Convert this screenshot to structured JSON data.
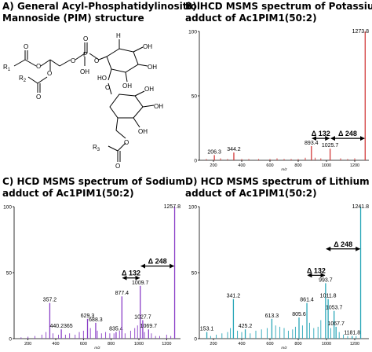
{
  "panels": {
    "a": {
      "title_line1": "A) General Acyl-Phosphatidylinositiol",
      "title_line2": "Mannoside (PIM) structure"
    },
    "b": {
      "title_line1": "B) HCD MSMS spectrum of Potassium",
      "title_line2": "adduct of Ac1PIM1(50:2)"
    },
    "c": {
      "title_line1": "C) HCD MSMS spectrum of Sodium",
      "title_line2": "adduct of Ac1PIM1(50:2)"
    },
    "d": {
      "title_line1": "D) HCD MSMS spectrum of Lithium",
      "title_line2": "adduct of Ac1PIM1(50:2)"
    }
  },
  "structure": {
    "r1": "R",
    "r1_sub": "1",
    "r2": "R",
    "r2_sub": "2",
    "r3": "R",
    "r3_sub": "3",
    "p": "P",
    "oh": "OH",
    "ho": "HO",
    "h": "H",
    "o": "O"
  },
  "chart_data": [
    {
      "type": "bar",
      "panel": "B",
      "color": "#d23a3a",
      "xlabel": "m/z",
      "ylabel": "",
      "xlim": [
        100,
        1300
      ],
      "ylim": [
        0,
        100
      ],
      "xticks": [
        200,
        400,
        600,
        800,
        1000,
        1200
      ],
      "yticks": [
        0,
        50,
        100
      ],
      "peaks": [
        {
          "x": 206.3,
          "y": 4,
          "label": "206.3"
        },
        {
          "x": 344.2,
          "y": 6,
          "label": "344.2"
        },
        {
          "x": 893.4,
          "y": 11,
          "label": "893.4"
        },
        {
          "x": 1025.7,
          "y": 9,
          "label": "1025.7"
        },
        {
          "x": 1273.8,
          "y": 100,
          "label": "1273.8"
        }
      ],
      "noise": [
        [
          150,
          1
        ],
        [
          250,
          1.5
        ],
        [
          300,
          1
        ],
        [
          400,
          1
        ],
        [
          450,
          1
        ],
        [
          520,
          1
        ],
        [
          600,
          1
        ],
        [
          650,
          1.5
        ],
        [
          700,
          1
        ],
        [
          750,
          1
        ],
        [
          800,
          1
        ],
        [
          850,
          2
        ],
        [
          920,
          2
        ],
        [
          960,
          1.5
        ],
        [
          1100,
          1.5
        ],
        [
          1150,
          1
        ],
        [
          1200,
          1.5
        ]
      ],
      "annotations": [
        {
          "label": "Δ 132",
          "from": 893.4,
          "to": 1025.7,
          "y": 17
        },
        {
          "label": "Δ 248",
          "from": 1025.7,
          "to": 1273.8,
          "y": 17
        }
      ]
    },
    {
      "type": "bar",
      "panel": "C",
      "color": "#8a3fc7",
      "xlabel": "m/z",
      "ylabel": "",
      "xlim": [
        100,
        1300
      ],
      "ylim": [
        0,
        100
      ],
      "xticks": [
        200,
        400,
        600,
        800,
        1000,
        1200
      ],
      "yticks": [
        0,
        50,
        100
      ],
      "peaks": [
        {
          "x": 357.2,
          "y": 27,
          "label": "357.2"
        },
        {
          "x": 440.2365,
          "y": 7,
          "label": "440.2365"
        },
        {
          "x": 629.3,
          "y": 15,
          "label": "629.3"
        },
        {
          "x": 688.3,
          "y": 12,
          "label": "688.3"
        },
        {
          "x": 835.4,
          "y": 5,
          "label": "835.4"
        },
        {
          "x": 877.4,
          "y": 32,
          "label": "877.4"
        },
        {
          "x": 1009.7,
          "y": 40,
          "label": "1009.7"
        },
        {
          "x": 1027.7,
          "y": 14,
          "label": "1027.7"
        },
        {
          "x": 1069.7,
          "y": 7,
          "label": "1069.7"
        },
        {
          "x": 1257.8,
          "y": 100,
          "label": "1257.8"
        }
      ],
      "noise": [
        [
          150,
          1
        ],
        [
          200,
          1.5
        ],
        [
          250,
          2
        ],
        [
          300,
          3
        ],
        [
          330,
          5
        ],
        [
          380,
          4
        ],
        [
          420,
          3
        ],
        [
          470,
          3
        ],
        [
          500,
          4
        ],
        [
          540,
          3
        ],
        [
          570,
          5
        ],
        [
          600,
          6
        ],
        [
          650,
          8
        ],
        [
          700,
          6
        ],
        [
          730,
          4
        ],
        [
          760,
          5
        ],
        [
          790,
          4
        ],
        [
          820,
          4
        ],
        [
          860,
          6
        ],
        [
          900,
          4
        ],
        [
          940,
          6
        ],
        [
          970,
          8
        ],
        [
          990,
          10
        ],
        [
          1040,
          5
        ],
        [
          1090,
          4
        ],
        [
          1120,
          2
        ],
        [
          1150,
          2
        ],
        [
          1200,
          3
        ],
        [
          1230,
          2
        ]
      ],
      "annotations": [
        {
          "label": "Δ 132",
          "from": 877.4,
          "to": 1009.7,
          "y": 46
        },
        {
          "label": "Δ 248",
          "from": 1009.7,
          "to": 1257.8,
          "y": 55
        }
      ]
    },
    {
      "type": "bar",
      "panel": "D",
      "color": "#2aa7b8",
      "xlabel": "m/z",
      "ylabel": "",
      "xlim": [
        100,
        1300
      ],
      "ylim": [
        0,
        100
      ],
      "xticks": [
        200,
        400,
        600,
        800,
        1000,
        1200
      ],
      "yticks": [
        0,
        50,
        100
      ],
      "peaks": [
        {
          "x": 153.1,
          "y": 5,
          "label": "153.1"
        },
        {
          "x": 341.2,
          "y": 30,
          "label": "341.2"
        },
        {
          "x": 425.2,
          "y": 7,
          "label": "425.2"
        },
        {
          "x": 613.3,
          "y": 15,
          "label": "613.3"
        },
        {
          "x": 805.6,
          "y": 16,
          "label": "805.6"
        },
        {
          "x": 861.4,
          "y": 27,
          "label": "861.4"
        },
        {
          "x": 993.7,
          "y": 42,
          "label": "993.7"
        },
        {
          "x": 1011.8,
          "y": 30,
          "label": "1011.8"
        },
        {
          "x": 1053.7,
          "y": 21,
          "label": "1053.7"
        },
        {
          "x": 1067.7,
          "y": 9,
          "label": "1067.7"
        },
        {
          "x": 1181.8,
          "y": 2,
          "label": "1181.8"
        },
        {
          "x": 1241.8,
          "y": 100,
          "label": "1241.8"
        }
      ],
      "noise": [
        [
          180,
          2
        ],
        [
          220,
          3
        ],
        [
          260,
          4
        ],
        [
          300,
          5
        ],
        [
          320,
          8
        ],
        [
          370,
          6
        ],
        [
          400,
          5
        ],
        [
          460,
          4
        ],
        [
          500,
          6
        ],
        [
          540,
          7
        ],
        [
          580,
          8
        ],
        [
          640,
          10
        ],
        [
          670,
          9
        ],
        [
          700,
          8
        ],
        [
          730,
          6
        ],
        [
          760,
          7
        ],
        [
          780,
          9
        ],
        [
          830,
          10
        ],
        [
          880,
          12
        ],
        [
          910,
          8
        ],
        [
          940,
          9
        ],
        [
          960,
          14
        ],
        [
          1030,
          8
        ],
        [
          1090,
          5
        ],
        [
          1120,
          3
        ],
        [
          1150,
          2
        ],
        [
          1210,
          2
        ]
      ],
      "annotations": [
        {
          "label": "Δ 132",
          "from": 861.4,
          "to": 993.7,
          "y": 48
        },
        {
          "label": "Δ 248",
          "from": 993.7,
          "to": 1241.8,
          "y": 68
        }
      ]
    }
  ]
}
